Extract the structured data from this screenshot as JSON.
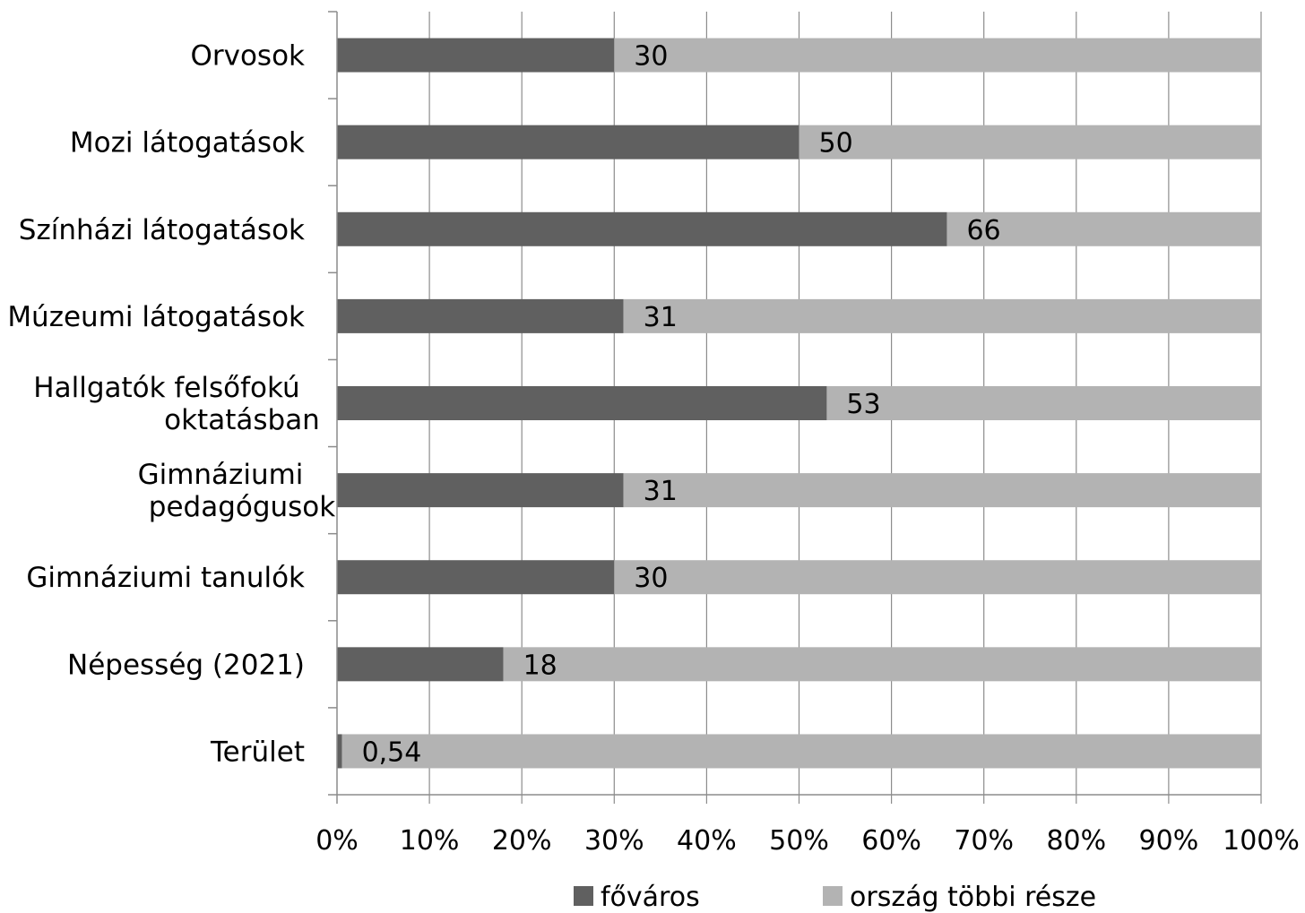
{
  "chart_data": {
    "type": "bar",
    "orientation": "horizontal",
    "stacked": true,
    "normalized": true,
    "categories": [
      "Orvosok",
      "Mozi látogatások",
      "Színházi látogatások",
      "Múzeumi látogatások",
      "Hallgatók felsőfokú oktatásban",
      "Gimnáziumi pedagógusok",
      "Gimnáziumi tanulók",
      "Népesség (2021)",
      "Terület"
    ],
    "category_lines": [
      [
        "Orvosok"
      ],
      [
        "Mozi látogatások"
      ],
      [
        "Színházi látogatások"
      ],
      [
        "Múzeumi látogatások"
      ],
      [
        "Hallgatók felsőfokú",
        "oktatásban"
      ],
      [
        "Gimnáziumi",
        "pedagógusok"
      ],
      [
        "Gimnáziumi tanulók"
      ],
      [
        "Népesség (2021)"
      ],
      [
        "Terület"
      ]
    ],
    "series": [
      {
        "name": "főváros",
        "values": [
          30,
          50,
          66,
          31,
          53,
          31,
          30,
          18,
          0.54
        ],
        "color": "#606060"
      },
      {
        "name": "ország többi része",
        "values": [
          70,
          50,
          34,
          69,
          47,
          69,
          70,
          82,
          99.46
        ],
        "color": "#b3b3b3"
      }
    ],
    "data_labels": [
      "30",
      "50",
      "66",
      "31",
      "53",
      "31",
      "30",
      "18",
      "0,54"
    ],
    "xlim": [
      0,
      100
    ],
    "xticks": [
      "0%",
      "10%",
      "20%",
      "30%",
      "40%",
      "50%",
      "60%",
      "70%",
      "80%",
      "90%",
      "100%"
    ],
    "grid": true,
    "legend_position": "bottom",
    "title": "",
    "xlabel": "",
    "ylabel": ""
  }
}
